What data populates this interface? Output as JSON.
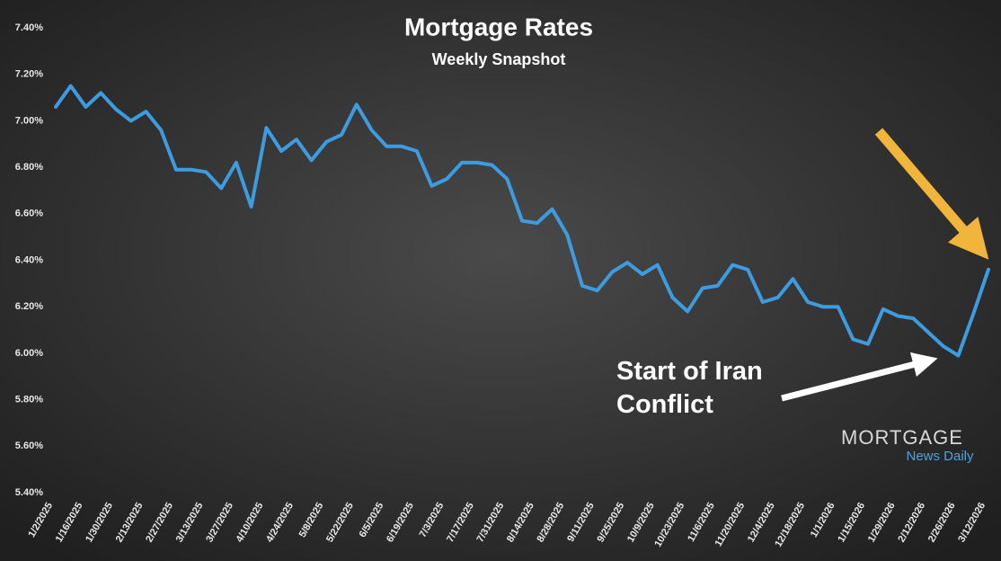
{
  "chart_data": {
    "type": "line",
    "title": "Mortgage Rates",
    "subtitle": "Weekly Snapshot",
    "annotation": "Start of Iran Conflict",
    "logo": {
      "brand": "MORTGAGE",
      "tagline": "News Daily"
    },
    "color": "#3d9be0",
    "categories": [
      "1/2/2025",
      null,
      "1/16/2025",
      null,
      "1/30/2025",
      null,
      "2/13/2025",
      null,
      "2/27/2025",
      null,
      "3/13/2025",
      null,
      "3/27/2025",
      null,
      "4/10/2025",
      null,
      "4/24/2025",
      null,
      "5/8/2025",
      null,
      "5/22/2025",
      null,
      "6/5/2025",
      null,
      "6/19/2025",
      null,
      "7/3/2025",
      null,
      "7/17/2025",
      null,
      "7/31/2025",
      null,
      "8/14/2025",
      null,
      "8/28/2025",
      null,
      "9/11/2025",
      null,
      "9/25/2025",
      null,
      "10/9/2025",
      null,
      "10/23/2025",
      null,
      "11/6/2025",
      null,
      "11/20/2025",
      null,
      "12/4/2025",
      null,
      "12/18/2025",
      null,
      "1/1/2026",
      null,
      "1/15/2026",
      null,
      "1/29/2026",
      null,
      "2/12/2026",
      null,
      "2/26/2026",
      null,
      "3/12/2026"
    ],
    "values": [
      7.06,
      7.15,
      7.06,
      7.12,
      7.05,
      7.0,
      7.04,
      6.96,
      6.79,
      6.79,
      6.78,
      6.71,
      6.82,
      6.63,
      6.97,
      6.87,
      6.92,
      6.83,
      6.91,
      6.94,
      7.07,
      6.96,
      6.89,
      6.89,
      6.87,
      6.72,
      6.75,
      6.82,
      6.82,
      6.81,
      6.75,
      6.57,
      6.56,
      6.62,
      6.51,
      6.29,
      6.27,
      6.35,
      6.39,
      6.34,
      6.38,
      6.24,
      6.18,
      6.28,
      6.29,
      6.38,
      6.36,
      6.22,
      6.24,
      6.32,
      6.22,
      6.2,
      6.2,
      6.06,
      6.04,
      6.19,
      6.16,
      6.15,
      6.09,
      6.03,
      5.99,
      6.17,
      6.36
    ],
    "ylim": [
      5.4,
      7.4
    ],
    "yticks": [
      {
        "value": 5.4,
        "label": "5.40%"
      },
      {
        "value": 5.6,
        "label": "5.60%"
      },
      {
        "value": 5.8,
        "label": "5.80%"
      },
      {
        "value": 6.0,
        "label": "6.00%"
      },
      {
        "value": 6.2,
        "label": "6.20%"
      },
      {
        "value": 6.4,
        "label": "6.40%"
      },
      {
        "value": 6.6,
        "label": "6.60%"
      },
      {
        "value": 6.8,
        "label": "6.80%"
      },
      {
        "value": 7.0,
        "label": "7.00%"
      },
      {
        "value": 7.2,
        "label": "7.20%"
      },
      {
        "value": 7.4,
        "label": "7.40%"
      }
    ],
    "grid": false
  }
}
